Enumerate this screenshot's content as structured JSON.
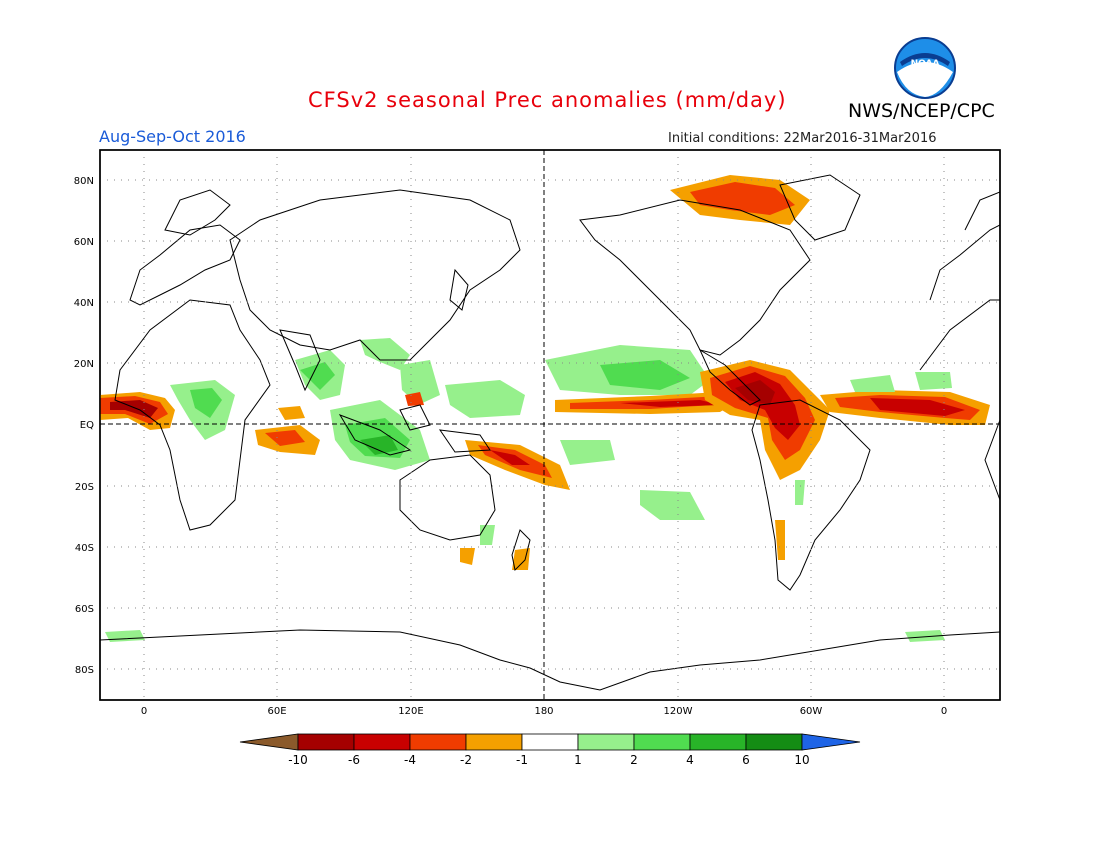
{
  "header": {
    "title": "CFSv2 seasonal Prec anomalies (mm/day)",
    "agency": "NWS/NCEP/CPC",
    "season": "Aug-Sep-Oct 2016",
    "initial_conditions": "Initial conditions: 22Mar2016-31Mar2016",
    "logo_text": "NOAA"
  },
  "map": {
    "lat_labels": [
      "80N",
      "60N",
      "40N",
      "20N",
      "EQ",
      "20S",
      "40S",
      "60S",
      "80S"
    ],
    "lon_labels": [
      "0",
      "60E",
      "120E",
      "180",
      "120W",
      "60W",
      "0"
    ]
  },
  "colorbar": {
    "labels": [
      "-10",
      "-6",
      "-4",
      "-2",
      "-1",
      "1",
      "2",
      "4",
      "6",
      "10"
    ],
    "colors": [
      "#8b5a2b",
      "#a50000",
      "#c80000",
      "#f03c00",
      "#f5a000",
      "#ffffff",
      "#96f08c",
      "#50dc50",
      "#28b428",
      "#148c14",
      "#1e64e6"
    ]
  }
}
